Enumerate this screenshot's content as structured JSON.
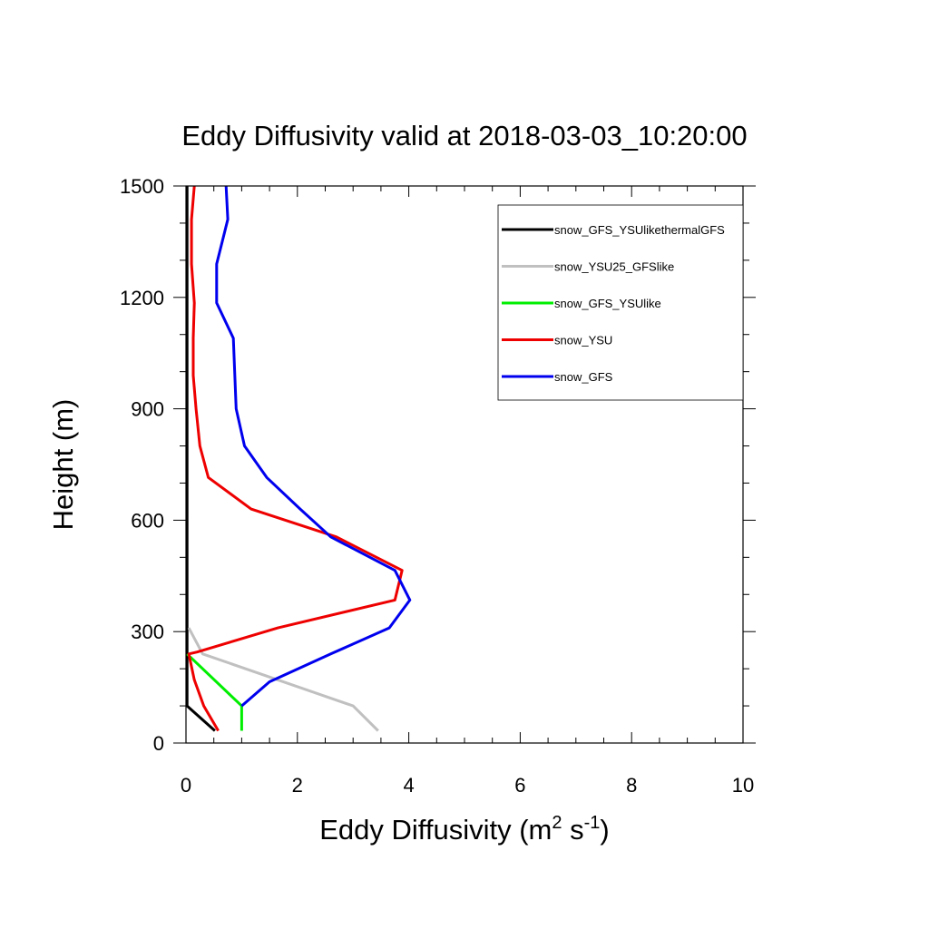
{
  "chart_data": {
    "type": "line",
    "title": "Eddy Diffusivity valid at 2018-03-03_10:20:00",
    "xlabel_main": "Eddy Diffusivity (m",
    "xlabel_sup1": "2",
    "xlabel_mid": " s",
    "xlabel_sup2": "-1",
    "xlabel_end": ")",
    "ylabel": "Height (m)",
    "xlim": [
      0,
      10
    ],
    "ylim": [
      0,
      1500
    ],
    "xticks": [
      0,
      2,
      4,
      6,
      8,
      10
    ],
    "yticks": [
      0,
      300,
      600,
      900,
      1200,
      1500
    ],
    "x_minor_step": 0.5,
    "y_minor_step": 100,
    "grid": false,
    "legend_position": "top-right",
    "series": [
      {
        "name": "snow_GFS_YSUlikethermalGFS",
        "color": "#000000",
        "points": [
          [
            0.52,
            33
          ],
          [
            0.02,
            100
          ],
          [
            0.02,
            240
          ],
          [
            0.02,
            1500
          ]
        ]
      },
      {
        "name": "snow_YSU25_GFSlike",
        "color": "#c0c0c0",
        "points": [
          [
            3.45,
            33
          ],
          [
            3.0,
            100
          ],
          [
            0.3,
            240
          ],
          [
            0.05,
            310
          ]
        ]
      },
      {
        "name": "snow_GFS_YSUlike",
        "color": "#00ee00",
        "points": [
          [
            1.0,
            33
          ],
          [
            1.0,
            100
          ],
          [
            0.02,
            240
          ]
        ]
      },
      {
        "name": "snow_YSU",
        "color": "#ee0000",
        "points": [
          [
            0.58,
            33
          ],
          [
            0.32,
            100
          ],
          [
            0.15,
            170
          ],
          [
            0.05,
            240
          ],
          [
            0.2,
            245
          ],
          [
            1.65,
            310
          ],
          [
            3.75,
            385
          ],
          [
            3.88,
            465
          ],
          [
            2.7,
            555
          ],
          [
            1.17,
            630
          ],
          [
            0.4,
            715
          ],
          [
            0.25,
            800
          ],
          [
            0.18,
            900
          ],
          [
            0.13,
            990
          ],
          [
            0.13,
            1090
          ],
          [
            0.15,
            1185
          ],
          [
            0.1,
            1290
          ],
          [
            0.1,
            1410
          ],
          [
            0.15,
            1500
          ]
        ]
      },
      {
        "name": "snow_GFS",
        "color": "#0000ee",
        "points": [
          [
            1.0,
            100
          ],
          [
            1.5,
            165
          ],
          [
            2.6,
            240
          ],
          [
            3.65,
            310
          ],
          [
            4.02,
            385
          ],
          [
            3.75,
            465
          ],
          [
            2.6,
            555
          ],
          [
            2.05,
            630
          ],
          [
            1.45,
            715
          ],
          [
            1.05,
            800
          ],
          [
            0.9,
            900
          ],
          [
            0.85,
            1090
          ],
          [
            0.55,
            1185
          ],
          [
            0.55,
            1290
          ],
          [
            0.75,
            1410
          ],
          [
            0.72,
            1500
          ]
        ]
      }
    ]
  }
}
